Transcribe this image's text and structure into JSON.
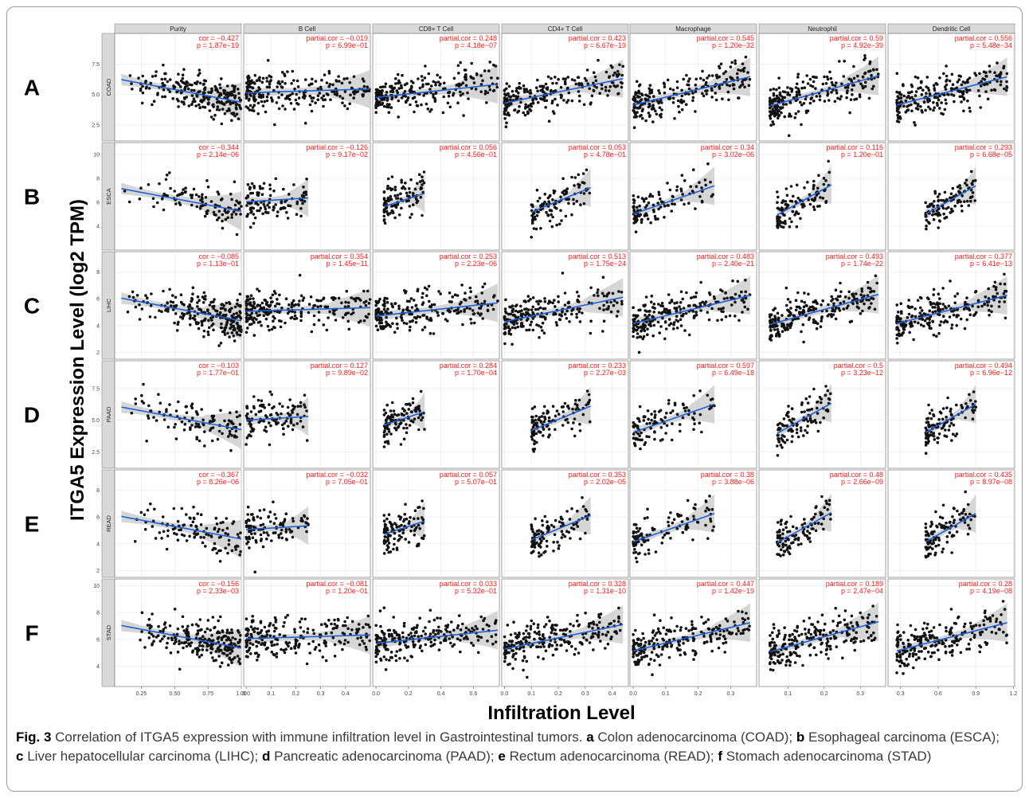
{
  "figure": {
    "ylabel": "ITGA5 Expression Level (log2 TPM)",
    "xlabel": "Infiltration Level",
    "caption": {
      "fig_label": "Fig. 3",
      "text_intro": "Correlation of ITGA5 expression with immune infiltration level in Gastrointestinal tumors.",
      "parts": [
        {
          "letter": "a",
          "text": "Colon adenocarcinoma (COAD);"
        },
        {
          "letter": "b",
          "text": "Esophageal carcinoma (ESCA);"
        },
        {
          "letter": "c",
          "text": "Liver hepatocellular carcinoma (LIHC);"
        },
        {
          "letter": "d",
          "text": "Pancreatic adenocarcinoma (PAAD);"
        },
        {
          "letter": "e",
          "text": "Rectum adenocarcinoma (READ);"
        },
        {
          "letter": "f",
          "text": "Stomach adenocarcinoma (STAD)"
        }
      ]
    },
    "colors": {
      "points": "#111111",
      "fit": "#1f5fd6",
      "band": "#c8c8c8",
      "stat": "#ff1a1a",
      "panel_bg": "#ffffff",
      "grid": "#e6e6e6",
      "strip": "#d9d9d9"
    }
  },
  "chart_data": {
    "type": "scatter",
    "columns": [
      "Purity",
      "B Cell",
      "CD8+ T Cell",
      "CD4+ T Cell",
      "Macrophage",
      "Neutrophil",
      "Dendritic Cell"
    ],
    "x_ticks": [
      [
        "0.25",
        "0.50",
        "0.75",
        "1.00"
      ],
      [
        "0.0",
        "0.1",
        "0.2",
        "0.3",
        "0.4"
      ],
      [
        "0.0",
        "0.2",
        "0.4",
        "0.6"
      ],
      [
        "0.0",
        "0.1",
        "0.2",
        "0.3",
        "0.4"
      ],
      [
        "0.0",
        "0.1",
        "0.2",
        "0.3"
      ],
      [
        "0.1",
        "0.2",
        "0.3"
      ],
      [
        "0.3",
        "0.6",
        "0.9",
        "1.2"
      ]
    ],
    "x_ranges": [
      [
        0.05,
        1.0
      ],
      [
        -0.01,
        0.5
      ],
      [
        -0.02,
        0.76
      ],
      [
        -0.01,
        0.46
      ],
      [
        -0.01,
        0.38
      ],
      [
        0.02,
        0.37
      ],
      [
        0.2,
        1.21
      ]
    ],
    "rows": [
      {
        "letter": "A",
        "name": "COAD",
        "y_ticks": [
          "2.5",
          "5.0",
          "7.5"
        ],
        "y_range": [
          1.2,
          10.0
        ],
        "stats": [
          {
            "cor_label": "cor",
            "cor": "−0.427",
            "p": "1.87e−19"
          },
          {
            "cor_label": "partial.cor",
            "cor": "−0.019",
            "p": "6.99e−01"
          },
          {
            "cor_label": "partial.cor",
            "cor": "0.248",
            "p": "4.18e−07"
          },
          {
            "cor_label": "partial.cor",
            "cor": "0.423",
            "p": "6.67e−19"
          },
          {
            "cor_label": "partial.cor",
            "cor": "0.545",
            "p": "1.20e−32"
          },
          {
            "cor_label": "partial.cor",
            "cor": "0.59",
            "p": "4.92e−39"
          },
          {
            "cor_label": "partial.cor",
            "cor": "0.556",
            "p": "5.48e−34"
          }
        ]
      },
      {
        "letter": "B",
        "name": "ESCA",
        "y_ticks": [
          "4",
          "6",
          "8",
          "10"
        ],
        "y_range": [
          2.0,
          11.0
        ],
        "stats": [
          {
            "cor_label": "cor",
            "cor": "−0.344",
            "p": "2.14e−06"
          },
          {
            "cor_label": "partial.cor",
            "cor": "−0.126",
            "p": "9.17e−02"
          },
          {
            "cor_label": "partial.cor",
            "cor": "0.056",
            "p": "4.56e−01"
          },
          {
            "cor_label": "partial.cor",
            "cor": "0.053",
            "p": "4.78e−01"
          },
          {
            "cor_label": "partial.cor",
            "cor": "0.34",
            "p": "3.02e−06"
          },
          {
            "cor_label": "partial.cor",
            "cor": "0.116",
            "p": "1.20e−01"
          },
          {
            "cor_label": "partial.cor",
            "cor": "0.293",
            "p": "6.68e−05"
          }
        ]
      },
      {
        "letter": "C",
        "name": "LIHC",
        "y_ticks": [
          "2",
          "4",
          "6",
          "8"
        ],
        "y_range": [
          1.5,
          9.5
        ],
        "stats": [
          {
            "cor_label": "cor",
            "cor": "−0.085",
            "p": "1.13e−01"
          },
          {
            "cor_label": "partial.cor",
            "cor": "0.354",
            "p": "1.45e−11"
          },
          {
            "cor_label": "partial.cor",
            "cor": "0.253",
            "p": "2.23e−06"
          },
          {
            "cor_label": "partial.cor",
            "cor": "0.513",
            "p": "1.75e−24"
          },
          {
            "cor_label": "partial.cor",
            "cor": "0.483",
            "p": "2.40e−21"
          },
          {
            "cor_label": "partial.cor",
            "cor": "0.493",
            "p": "1.74e−22"
          },
          {
            "cor_label": "partial.cor",
            "cor": "0.377",
            "p": "6.41e−13"
          }
        ]
      },
      {
        "letter": "D",
        "name": "PAAD",
        "y_ticks": [
          "2.5",
          "5.0",
          "7.5"
        ],
        "y_range": [
          1.2,
          9.7
        ],
        "stats": [
          {
            "cor_label": "cor",
            "cor": "−0.103",
            "p": "1.77e−01"
          },
          {
            "cor_label": "partial.cor",
            "cor": "0.127",
            "p": "9.89e−02"
          },
          {
            "cor_label": "partial.cor",
            "cor": "0.284",
            "p": "1.70e−04"
          },
          {
            "cor_label": "partial.cor",
            "cor": "0.233",
            "p": "2.27e−03"
          },
          {
            "cor_label": "partial.cor",
            "cor": "0.597",
            "p": "6.49e−18"
          },
          {
            "cor_label": "partial.cor",
            "cor": "0.5",
            "p": "3.23e−12"
          },
          {
            "cor_label": "partial.cor",
            "cor": "0.494",
            "p": "6.96e−12"
          }
        ]
      },
      {
        "letter": "E",
        "name": "READ",
        "y_ticks": [
          "2",
          "4",
          "6",
          "8"
        ],
        "y_range": [
          1.5,
          9.5
        ],
        "stats": [
          {
            "cor_label": "cor",
            "cor": "−0.367",
            "p": "8.26e−06"
          },
          {
            "cor_label": "partial.cor",
            "cor": "−0.032",
            "p": "7.05e−01"
          },
          {
            "cor_label": "partial.cor",
            "cor": "0.057",
            "p": "5.07e−01"
          },
          {
            "cor_label": "partial.cor",
            "cor": "0.353",
            "p": "2.02e−05"
          },
          {
            "cor_label": "partial.cor",
            "cor": "0.38",
            "p": "3.88e−06"
          },
          {
            "cor_label": "partial.cor",
            "cor": "0.48",
            "p": "2.66e−09"
          },
          {
            "cor_label": "partial.cor",
            "cor": "0.435",
            "p": "8.97e−08"
          }
        ]
      },
      {
        "letter": "F",
        "name": "STAD",
        "y_ticks": [
          "4",
          "6",
          "8",
          "10"
        ],
        "y_range": [
          2.5,
          10.5
        ],
        "stats": [
          {
            "cor_label": "cor",
            "cor": "−0.156",
            "p": "2.33e−03"
          },
          {
            "cor_label": "partial.cor",
            "cor": "−0.081",
            "p": "1.20e−01"
          },
          {
            "cor_label": "partial.cor",
            "cor": "0.033",
            "p": "5.32e−01"
          },
          {
            "cor_label": "partial.cor",
            "cor": "0.328",
            "p": "1.31e−10"
          },
          {
            "cor_label": "partial.cor",
            "cor": "0.447",
            "p": "1.42e−19"
          },
          {
            "cor_label": "partial.cor",
            "cor": "0.189",
            "p": "2.47e−04"
          },
          {
            "cor_label": "partial.cor",
            "cor": "0.28",
            "p": "4.19e−08"
          }
        ]
      }
    ]
  }
}
